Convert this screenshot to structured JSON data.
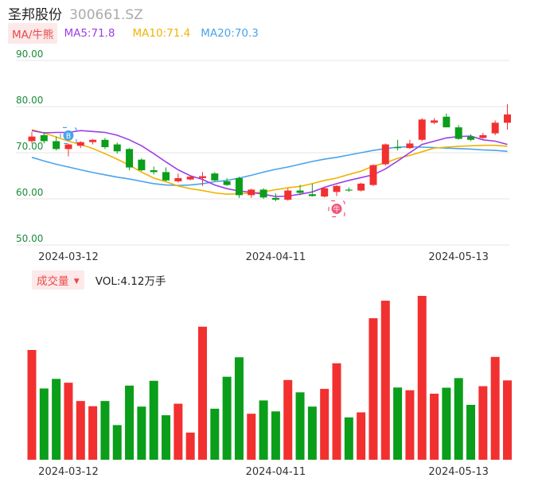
{
  "header": {
    "name": "圣邦股份",
    "code": "300661.SZ"
  },
  "indicator": {
    "button_label": "MA/牛熊",
    "ma5_label": "MA5:71.8",
    "ma10_label": "MA10:71.4",
    "ma20_label": "MA20:70.3"
  },
  "volume": {
    "button_label": "成交量",
    "dropdown_glyph": "▼",
    "value_label": "VOL:4.12万手"
  },
  "colors": {
    "up": "#f23030",
    "down": "#0a9e1a",
    "ma5": "#9b3fe6",
    "ma10": "#f0b400",
    "ma20": "#4aa3ec",
    "grid": "#e6e6e6",
    "axis_text": "#1b8c3a"
  },
  "markers": [
    {
      "label": "B",
      "icon": "buy-marker-icon",
      "color": "#4aa3ec",
      "index": 3
    },
    {
      "label": "牛",
      "icon": "bull-marker-icon",
      "color": "#f2547a",
      "index": 25
    }
  ],
  "chart_data": [
    {
      "type": "candlestick",
      "title": "",
      "y_ticks": [
        "90.00",
        "80.00",
        "70.00",
        "60.00",
        "50.00"
      ],
      "ylim": [
        50,
        90
      ],
      "x_ticks": [
        {
          "index": 3,
          "label": "2024-03-12"
        },
        {
          "index": 20,
          "label": "2024-04-11"
        },
        {
          "index": 35,
          "label": "2024-05-13"
        }
      ],
      "grid": true,
      "candles": [
        {
          "o": 72.5,
          "h": 74.5,
          "l": 72.0,
          "c": 73.5
        },
        {
          "o": 73.8,
          "h": 74.5,
          "l": 72.0,
          "c": 72.5
        },
        {
          "o": 72.5,
          "h": 73.5,
          "l": 70.5,
          "c": 70.8
        },
        {
          "o": 70.8,
          "h": 72.0,
          "l": 69.2,
          "c": 71.8
        },
        {
          "o": 71.5,
          "h": 72.5,
          "l": 71.0,
          "c": 72.3
        },
        {
          "o": 72.3,
          "h": 73.0,
          "l": 71.8,
          "c": 72.8
        },
        {
          "o": 72.8,
          "h": 73.2,
          "l": 70.8,
          "c": 71.2
        },
        {
          "o": 71.8,
          "h": 72.2,
          "l": 69.8,
          "c": 70.3
        },
        {
          "o": 70.8,
          "h": 71.0,
          "l": 66.2,
          "c": 66.8
        },
        {
          "o": 68.5,
          "h": 68.8,
          "l": 66.0,
          "c": 66.2
        },
        {
          "o": 66.2,
          "h": 67.0,
          "l": 65.3,
          "c": 65.8
        },
        {
          "o": 65.8,
          "h": 66.8,
          "l": 63.8,
          "c": 64.0
        },
        {
          "o": 63.8,
          "h": 65.5,
          "l": 63.5,
          "c": 64.5
        },
        {
          "o": 64.2,
          "h": 65.0,
          "l": 64.0,
          "c": 64.8
        },
        {
          "o": 64.5,
          "h": 65.8,
          "l": 62.8,
          "c": 64.9
        },
        {
          "o": 65.5,
          "h": 65.8,
          "l": 63.8,
          "c": 64.0
        },
        {
          "o": 63.8,
          "h": 64.5,
          "l": 62.8,
          "c": 63.0
        },
        {
          "o": 64.5,
          "h": 64.8,
          "l": 60.2,
          "c": 60.8
        },
        {
          "o": 60.8,
          "h": 62.2,
          "l": 60.2,
          "c": 62.0
        },
        {
          "o": 62.0,
          "h": 62.3,
          "l": 60.0,
          "c": 60.3
        },
        {
          "o": 60.2,
          "h": 61.2,
          "l": 59.5,
          "c": 59.8
        },
        {
          "o": 59.8,
          "h": 62.3,
          "l": 59.6,
          "c": 61.8
        },
        {
          "o": 61.8,
          "h": 63.0,
          "l": 60.8,
          "c": 61.3
        },
        {
          "o": 61.0,
          "h": 63.3,
          "l": 60.5,
          "c": 60.6
        },
        {
          "o": 60.5,
          "h": 62.5,
          "l": 60.3,
          "c": 62.3
        },
        {
          "o": 61.5,
          "h": 63.0,
          "l": 60.6,
          "c": 62.8
        },
        {
          "o": 62.0,
          "h": 62.5,
          "l": 61.5,
          "c": 61.8
        },
        {
          "o": 61.8,
          "h": 63.5,
          "l": 61.6,
          "c": 63.3
        },
        {
          "o": 63.0,
          "h": 67.5,
          "l": 62.8,
          "c": 67.3
        },
        {
          "o": 67.5,
          "h": 72.0,
          "l": 67.2,
          "c": 71.8
        },
        {
          "o": 71.2,
          "h": 72.8,
          "l": 70.5,
          "c": 71.0
        },
        {
          "o": 71.0,
          "h": 72.8,
          "l": 70.8,
          "c": 72.0
        },
        {
          "o": 72.8,
          "h": 77.5,
          "l": 72.5,
          "c": 77.2
        },
        {
          "o": 76.5,
          "h": 77.5,
          "l": 76.2,
          "c": 77.0
        },
        {
          "o": 77.8,
          "h": 78.5,
          "l": 75.5,
          "c": 75.5
        },
        {
          "o": 75.5,
          "h": 76.0,
          "l": 72.8,
          "c": 73.0
        },
        {
          "o": 73.5,
          "h": 74.0,
          "l": 72.5,
          "c": 72.8
        },
        {
          "o": 73.2,
          "h": 74.3,
          "l": 73.0,
          "c": 73.8
        },
        {
          "o": 74.2,
          "h": 77.0,
          "l": 73.8,
          "c": 76.5
        },
        {
          "o": 76.5,
          "h": 80.5,
          "l": 75.0,
          "c": 78.3
        }
      ],
      "ma5": [
        74.8,
        74.3,
        74.4,
        74.4,
        74.8,
        74.6,
        74.4,
        73.8,
        72.8,
        71.5,
        69.8,
        68.0,
        66.3,
        65.0,
        64.2,
        63.0,
        62.2,
        61.7,
        61.4,
        61.0,
        60.5,
        60.6,
        61.0,
        61.5,
        62.5,
        63.3,
        64.0,
        64.6,
        65.2,
        66.5,
        68.2,
        70.0,
        71.8,
        72.5,
        73.2,
        73.5,
        73.6,
        72.8,
        72.5,
        71.8
      ],
      "ma10": [
        75.0,
        74.3,
        73.4,
        72.5,
        71.8,
        70.9,
        69.8,
        68.6,
        67.3,
        65.8,
        64.5,
        63.7,
        62.8,
        62.2,
        61.8,
        61.3,
        61.0,
        61.1,
        61.2,
        61.5,
        62.0,
        62.4,
        62.7,
        63.3,
        64.0,
        64.5,
        65.3,
        66.0,
        67.1,
        67.8,
        68.8,
        69.4,
        70.2,
        71.0,
        71.2,
        71.4,
        71.5,
        71.6,
        71.6,
        71.4
      ],
      "ma20": [
        69.0,
        68.2,
        67.5,
        66.9,
        66.3,
        65.7,
        65.2,
        64.7,
        64.3,
        63.8,
        63.3,
        63.0,
        62.9,
        63.0,
        63.3,
        63.7,
        64.0,
        64.5,
        65.1,
        65.8,
        66.4,
        66.9,
        67.5,
        68.1,
        68.6,
        69.0,
        69.5,
        70.0,
        70.5,
        70.9,
        71.2,
        71.3,
        71.2,
        71.1,
        71.0,
        70.9,
        70.8,
        70.6,
        70.5,
        70.3
      ]
    },
    {
      "type": "bar",
      "title": "",
      "series_label": "VOL:4.12万手",
      "unit": "万手",
      "values": [
        5.7,
        3.7,
        4.2,
        4.0,
        3.05,
        2.78,
        3.05,
        1.8,
        3.85,
        2.76,
        4.1,
        2.31,
        2.91,
        1.41,
        6.91,
        2.65,
        4.31,
        5.32,
        2.39,
        3.08,
        2.51,
        4.14,
        3.5,
        2.76,
        3.68,
        5.01,
        2.2,
        2.46,
        7.35,
        8.26,
        3.75,
        3.61,
        8.51,
        3.43,
        3.74,
        4.24,
        2.85,
        3.82,
        5.34,
        4.12
      ]
    }
  ]
}
